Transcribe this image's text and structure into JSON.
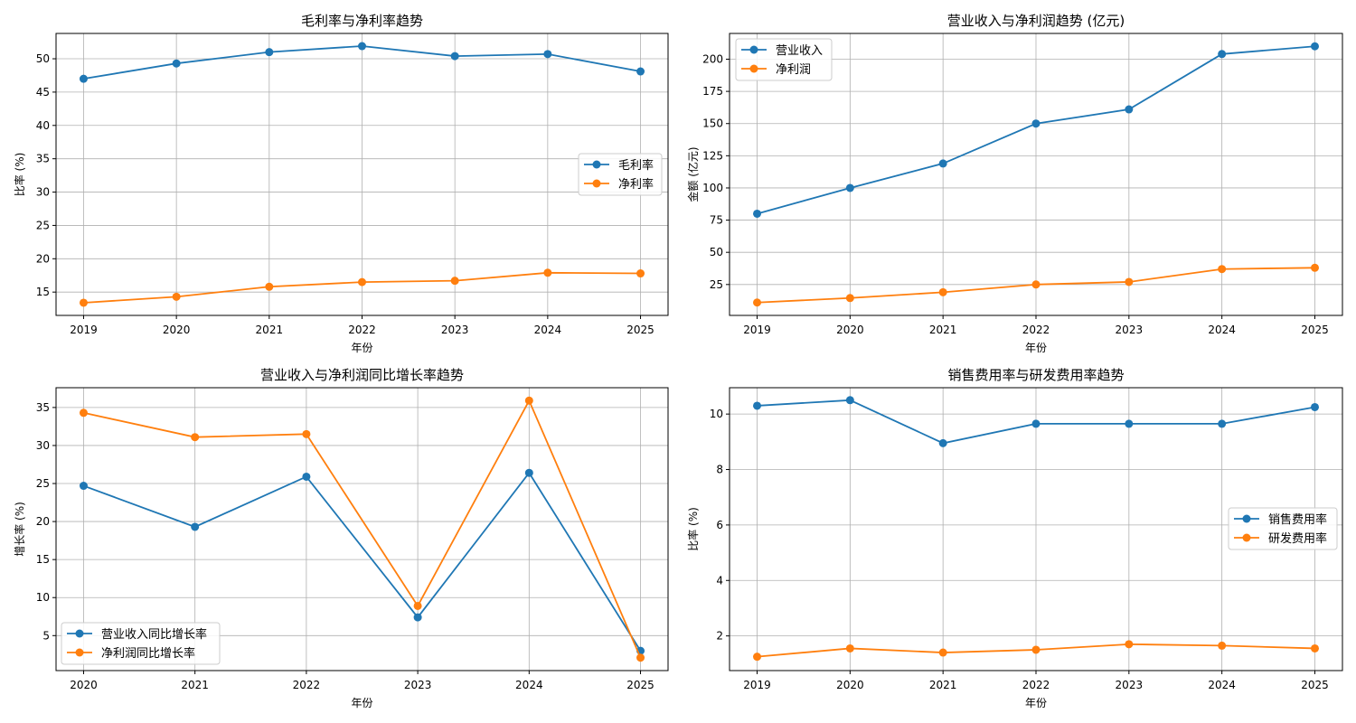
{
  "charts": [
    {
      "type": "line",
      "title": "毛利率与净利率趋势",
      "xlabel": "年份",
      "ylabel": "比率 (%)",
      "x": [
        "2019",
        "2020",
        "2021",
        "2022",
        "2023",
        "2024",
        "2025"
      ],
      "ylim": [
        11.5,
        53.8
      ],
      "yticks": [
        15,
        20,
        25,
        30,
        35,
        40,
        45,
        50
      ],
      "legend": "center-right",
      "series": [
        {
          "name": "毛利率",
          "color": "#1f77b4",
          "values": [
            47.0,
            49.3,
            51.0,
            51.9,
            50.4,
            50.7,
            48.1
          ]
        },
        {
          "name": "净利率",
          "color": "#ff7f0e",
          "values": [
            13.4,
            14.3,
            15.8,
            16.5,
            16.7,
            17.9,
            17.8
          ]
        }
      ]
    },
    {
      "type": "line",
      "title": "营业收入与净利润趋势 (亿元)",
      "xlabel": "年份",
      "ylabel": "金额 (亿元)",
      "x": [
        "2019",
        "2020",
        "2021",
        "2022",
        "2023",
        "2024",
        "2025"
      ],
      "ylim": [
        1,
        220
      ],
      "yticks": [
        25,
        50,
        75,
        100,
        125,
        150,
        175,
        200
      ],
      "legend": "top-left",
      "series": [
        {
          "name": "营业收入",
          "color": "#1f77b4",
          "values": [
            80,
            100,
            119,
            150,
            161,
            204,
            210
          ]
        },
        {
          "name": "净利润",
          "color": "#ff7f0e",
          "values": [
            11,
            14.5,
            19,
            25,
            27,
            37,
            38
          ]
        }
      ]
    },
    {
      "type": "line",
      "title": "营业收入与净利润同比增长率趋势",
      "xlabel": "年份",
      "ylabel": "增长率 (%)",
      "x": [
        "2020",
        "2021",
        "2022",
        "2023",
        "2024",
        "2025"
      ],
      "ylim": [
        0.4,
        37.6
      ],
      "yticks": [
        5,
        10,
        15,
        20,
        25,
        30,
        35
      ],
      "legend": "bottom-left",
      "series": [
        {
          "name": "营业收入同比增长率",
          "color": "#1f77b4",
          "values": [
            24.7,
            19.3,
            25.9,
            7.4,
            26.4,
            3.0
          ]
        },
        {
          "name": "净利润同比增长率",
          "color": "#ff7f0e",
          "values": [
            34.3,
            31.1,
            31.5,
            8.9,
            35.9,
            2.1
          ]
        }
      ]
    },
    {
      "type": "line",
      "title": "销售费用率与研发费用率趋势",
      "xlabel": "年份",
      "ylabel": "比率 (%)",
      "x": [
        "2019",
        "2020",
        "2021",
        "2022",
        "2023",
        "2024",
        "2025"
      ],
      "ylim": [
        0.75,
        10.95
      ],
      "yticks": [
        2,
        4,
        6,
        8,
        10
      ],
      "legend": "center-right",
      "series": [
        {
          "name": "销售费用率",
          "color": "#1f77b4",
          "values": [
            10.3,
            10.5,
            8.95,
            9.65,
            9.65,
            9.65,
            10.25
          ]
        },
        {
          "name": "研发费用率",
          "color": "#ff7f0e",
          "values": [
            1.25,
            1.55,
            1.4,
            1.5,
            1.7,
            1.65,
            1.55
          ]
        }
      ]
    }
  ]
}
